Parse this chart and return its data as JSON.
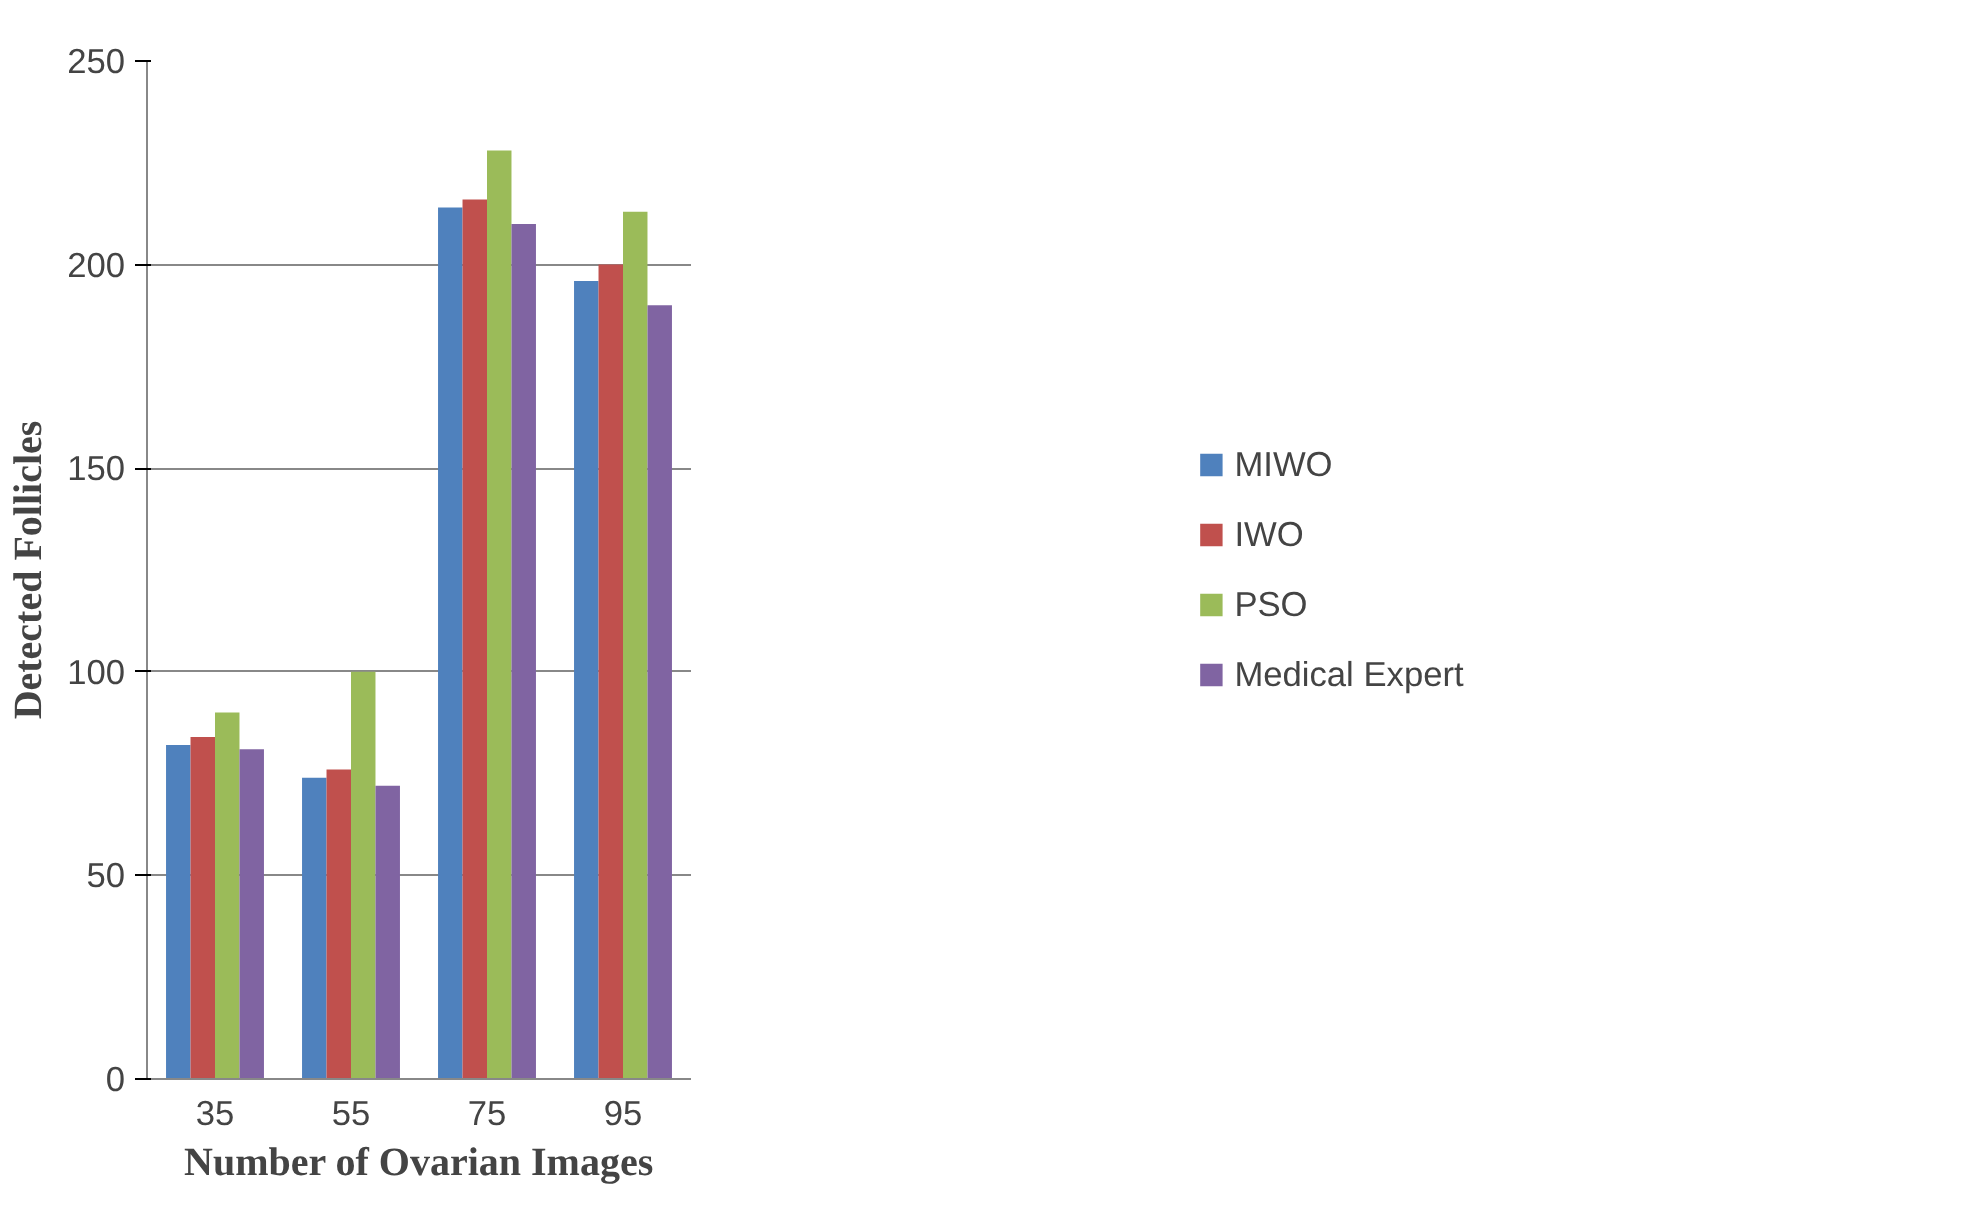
{
  "chart_data": {
    "type": "bar",
    "xlabel": "Number of Ovarian Images",
    "ylabel": "Detected Follicles",
    "categories": [
      "35",
      "55",
      "75",
      "95"
    ],
    "series": [
      {
        "name": "MIWO",
        "color": "#4f81bd",
        "values": [
          82,
          74,
          214,
          196
        ]
      },
      {
        "name": "IWO",
        "color": "#c0504d",
        "values": [
          84,
          76,
          216,
          200
        ]
      },
      {
        "name": "PSO",
        "color": "#9bbb59",
        "values": [
          90,
          100,
          228,
          213
        ]
      },
      {
        "name": "Medical Expert",
        "color": "#8064a2",
        "values": [
          81,
          72,
          210,
          190
        ]
      }
    ],
    "ylim": [
      0,
      250
    ],
    "yticks": [
      0,
      50,
      100,
      150,
      200,
      250
    ],
    "grid": "y",
    "legend": "right"
  }
}
